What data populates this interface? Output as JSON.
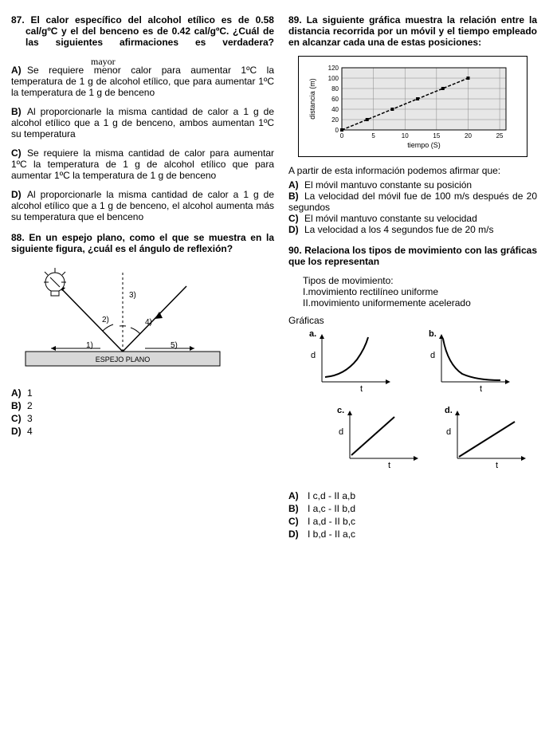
{
  "q87": {
    "number": "87.",
    "stem": "El calor específico del alcohol etílico es de 0.58 cal/gºC y el del benceno es de 0.42 cal/gºC. ¿Cuál de las siguientes afirmaciones es verdadera?",
    "handwritten": "mayor",
    "options": {
      "A": "Se requiere menor calor para aumentar 1ºC la temperatura de 1 g de alcohol etílico, que para aumentar 1ºC la temperatura de 1 g de benceno",
      "B": "Al proporcionarle la misma cantidad de calor a 1 g de alcohol etílico que a 1 g de benceno, ambos aumentan 1ºC su temperatura",
      "C": "Se requiere la misma cantidad de calor para aumentar 1ºC la temperatura de 1 g de alcohol etílico que para aumentar 1ºC la temperatura de 1 g de benceno",
      "D": "Al proporcionarle la misma cantidad de calor a 1 g de alcohol etílico que a 1 g de benceno, el alcohol aumenta más su temperatura que el benceno"
    }
  },
  "q88": {
    "number": "88.",
    "stem": "En un espejo plano, como el que se muestra en la siguiente figura, ¿cuál es el ángulo de reflexión?",
    "mirror_label": "ESPEJO PLANO",
    "ray_labels": {
      "r1": "1)",
      "r2": "2)",
      "r3": "3)",
      "r4": "4)",
      "r5": "5)"
    },
    "options": {
      "A": "1",
      "B": "2",
      "C": "3",
      "D": "4"
    }
  },
  "q89": {
    "number": "89.",
    "stem": "La siguiente gráfica muestra la relación entre la distancia recorrida por un móvil y el tiempo empleado en alcanzar cada una de estas posiciones:",
    "chart": {
      "ylabel": "distancia (m)",
      "xlabel": "tiempo (S)",
      "yticks": [
        0,
        20,
        40,
        60,
        80,
        100,
        120
      ],
      "xticks": [
        0,
        5,
        10,
        15,
        20,
        25
      ],
      "xlim": [
        0,
        26
      ],
      "ylim": [
        0,
        120
      ],
      "series": [
        {
          "x": 0,
          "y": 0
        },
        {
          "x": 4,
          "y": 20
        },
        {
          "x": 8,
          "y": 40
        },
        {
          "x": 12,
          "y": 60
        },
        {
          "x": 16,
          "y": 80
        },
        {
          "x": 20,
          "y": 100
        }
      ],
      "line_color": "#000000",
      "grid_color": "#888888",
      "bg_hatch_color": "#bbbbbb"
    },
    "after": "A partir de esta información podemos afirmar que:",
    "options": {
      "A": "El móvil mantuvo constante su posición",
      "B": "La velocidad del móvil fue de 100 m/s después de 20 segundos",
      "C": "El móvil mantuvo constante su velocidad",
      "D": "La velocidad a los 4 segundos fue de 20 m/s"
    }
  },
  "q90": {
    "number": "90.",
    "stem": "Relaciona los tipos de movimiento con las gráficas que los representan",
    "types_title": "Tipos de movimiento:",
    "types": {
      "I": "I.movimiento rectilíneo uniforme",
      "II": "II.movimiento uniformemente acelerado"
    },
    "graphs_title": "Gráficas",
    "graph_labels": {
      "a": "a.",
      "b": "b.",
      "c": "c.",
      "d": "d."
    },
    "axis_labels": {
      "y": "d",
      "x": "t"
    },
    "options": {
      "A": "I c,d - II a,b",
      "B": "I a,c - II b,d",
      "C": "I a,d - II b,c",
      "D": "I b,d - II a,c"
    }
  },
  "opt_prefix": {
    "A": "A)",
    "B": "B)",
    "C": "C)",
    "D": "D)"
  }
}
